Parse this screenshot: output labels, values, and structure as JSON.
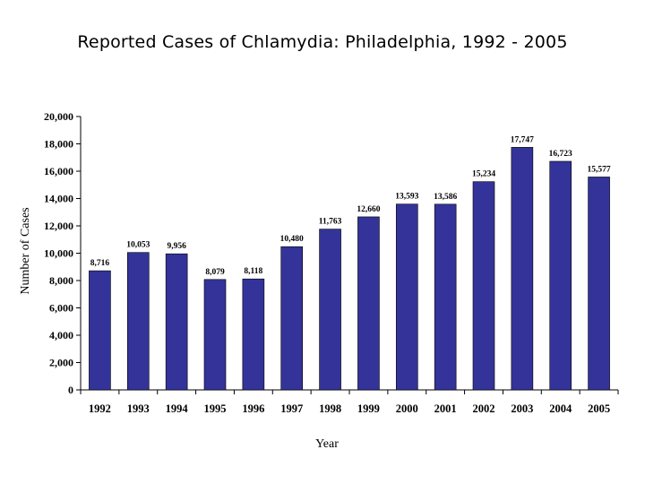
{
  "chart_data": {
    "type": "bar",
    "title": "Reported Cases of Chlamydia: Philadelphia, 1992 - 2005",
    "xlabel": "Year",
    "ylabel": "Number of Cases",
    "categories": [
      "1992",
      "1993",
      "1994",
      "1995",
      "1996",
      "1997",
      "1998",
      "1999",
      "2000",
      "2001",
      "2002",
      "2003",
      "2004",
      "2005"
    ],
    "values": [
      8716,
      10053,
      9956,
      8079,
      8118,
      10480,
      11763,
      12660,
      13593,
      13586,
      15234,
      17747,
      16723,
      15577
    ],
    "value_labels": [
      "8,716",
      "10,053",
      "9,956",
      "8,079",
      "8,118",
      "10,480",
      "11,763",
      "12,660",
      "13,593",
      "13,586",
      "15,234",
      "17,747",
      "16,723",
      "15,577"
    ],
    "ylim": [
      0,
      20000
    ],
    "yticks": [
      0,
      2000,
      4000,
      6000,
      8000,
      10000,
      12000,
      14000,
      16000,
      18000,
      20000
    ],
    "ytick_labels": [
      "0",
      "2,000",
      "4,000",
      "6,000",
      "8,000",
      "10,000",
      "12,000",
      "14,000",
      "16,000",
      "18,000",
      "20,000"
    ],
    "grid": false,
    "legend": "none",
    "bar_color": "#333399"
  }
}
